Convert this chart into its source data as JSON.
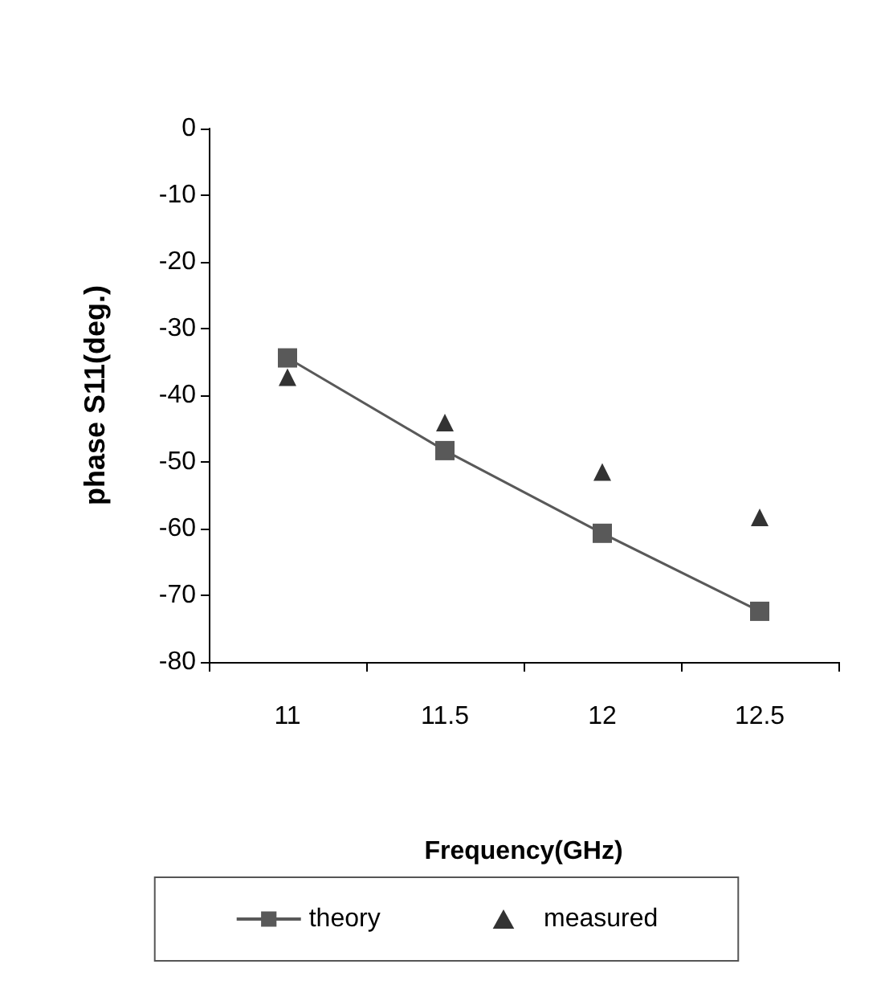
{
  "chart_data": {
    "type": "line",
    "xlabel": "Frequency(GHz)",
    "ylabel": "phase S11(deg.)",
    "categories": [
      "11",
      "11.5",
      "12",
      "12.5"
    ],
    "series": [
      {
        "name": "theory",
        "color": "#595959",
        "marker": "square",
        "values": [
          -34.4,
          -48.3,
          -60.7,
          -72.4
        ]
      },
      {
        "name": "measured",
        "type": "scatter",
        "color": "#000000",
        "marker": "triangle",
        "values": [
          -37.3,
          -44.1,
          -51.5,
          -58.3
        ]
      }
    ],
    "ylim": [
      -80,
      0
    ],
    "yticks": [
      0,
      -10,
      -20,
      -30,
      -40,
      -50,
      -60,
      -70,
      -80
    ],
    "grid": false,
    "legend": "bottom"
  }
}
